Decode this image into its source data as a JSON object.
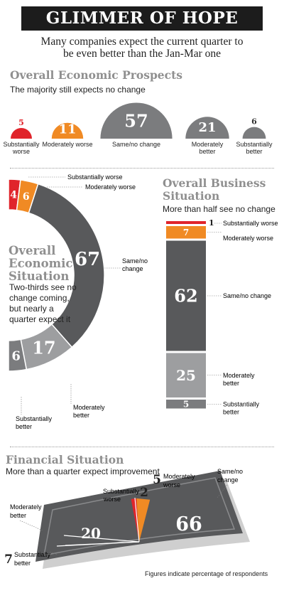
{
  "header": {
    "title": "GLIMMER OF HOPE",
    "subtitle_line1": "Many companies expect the current quarter to",
    "subtitle_line2": "be even better than the Jan-Mar one"
  },
  "colors": {
    "red": "#e0242b",
    "orange": "#f08a24",
    "dark_gray": "#58595b",
    "mid_gray": "#7b7c7e",
    "light_gray": "#9d9ea0",
    "title_gray": "#8f8f8f"
  },
  "footnote": "Figures indicate percentage of respondents",
  "chart_data": [
    {
      "id": "overall_economic_prospects",
      "type": "bar",
      "title": "Overall Economic Prospects",
      "subtitle": "The majority still expects no change",
      "categories": [
        "Substantially worse",
        "Moderately worse",
        "Same/no change",
        "Moderately better",
        "Substantially better"
      ],
      "values": [
        5,
        11,
        57,
        21,
        6
      ]
    },
    {
      "id": "overall_economic_situation",
      "type": "pie",
      "title_line1": "Overall",
      "title_line2": "Economic",
      "title_line3": "Situation",
      "note_line1": "Two-thirds see no",
      "note_line2": "change coming,",
      "note_line3": "but nearly a",
      "note_line4": "quarter expect it",
      "categories": [
        "Substantially worse",
        "Moderately worse",
        "Same/no change",
        "Moderately better",
        "Substantially better"
      ],
      "values": [
        4,
        6,
        67,
        17,
        6
      ]
    },
    {
      "id": "overall_business_situation",
      "type": "bar",
      "title_line1": "Overall Business",
      "title_line2": "Situation",
      "subtitle": "More than half see no change",
      "categories": [
        "Substantially worse",
        "Moderately worse",
        "Same/no change",
        "Moderately better",
        "Substantially better"
      ],
      "values": [
        1,
        7,
        62,
        25,
        5
      ]
    },
    {
      "id": "financial_situation",
      "type": "pie",
      "title": "Financial Situation",
      "subtitle": "More than a quarter expect improvement",
      "categories": [
        "Substantially worse",
        "Moderately worse",
        "Same/no change",
        "Moderately better",
        "Substantially better"
      ],
      "values": [
        2,
        5,
        66,
        20,
        7
      ]
    }
  ],
  "labels": {
    "substantially_worse": "Substantially worse",
    "moderately_worse": "Moderately worse",
    "same_no_change": "Same/no change",
    "moderately_better": "Moderately better",
    "substantially_better": "Substantially better",
    "sw_line1": "Substantially",
    "sw_line2": "worse",
    "mw_line1": "Moderately",
    "mw_line2": "worse",
    "sn_line1": "Same/no",
    "sn_line2": "change",
    "mb_line1": "Moderately",
    "mb_line2": "better",
    "sb_line1": "Substantially",
    "sb_line2": "better"
  }
}
